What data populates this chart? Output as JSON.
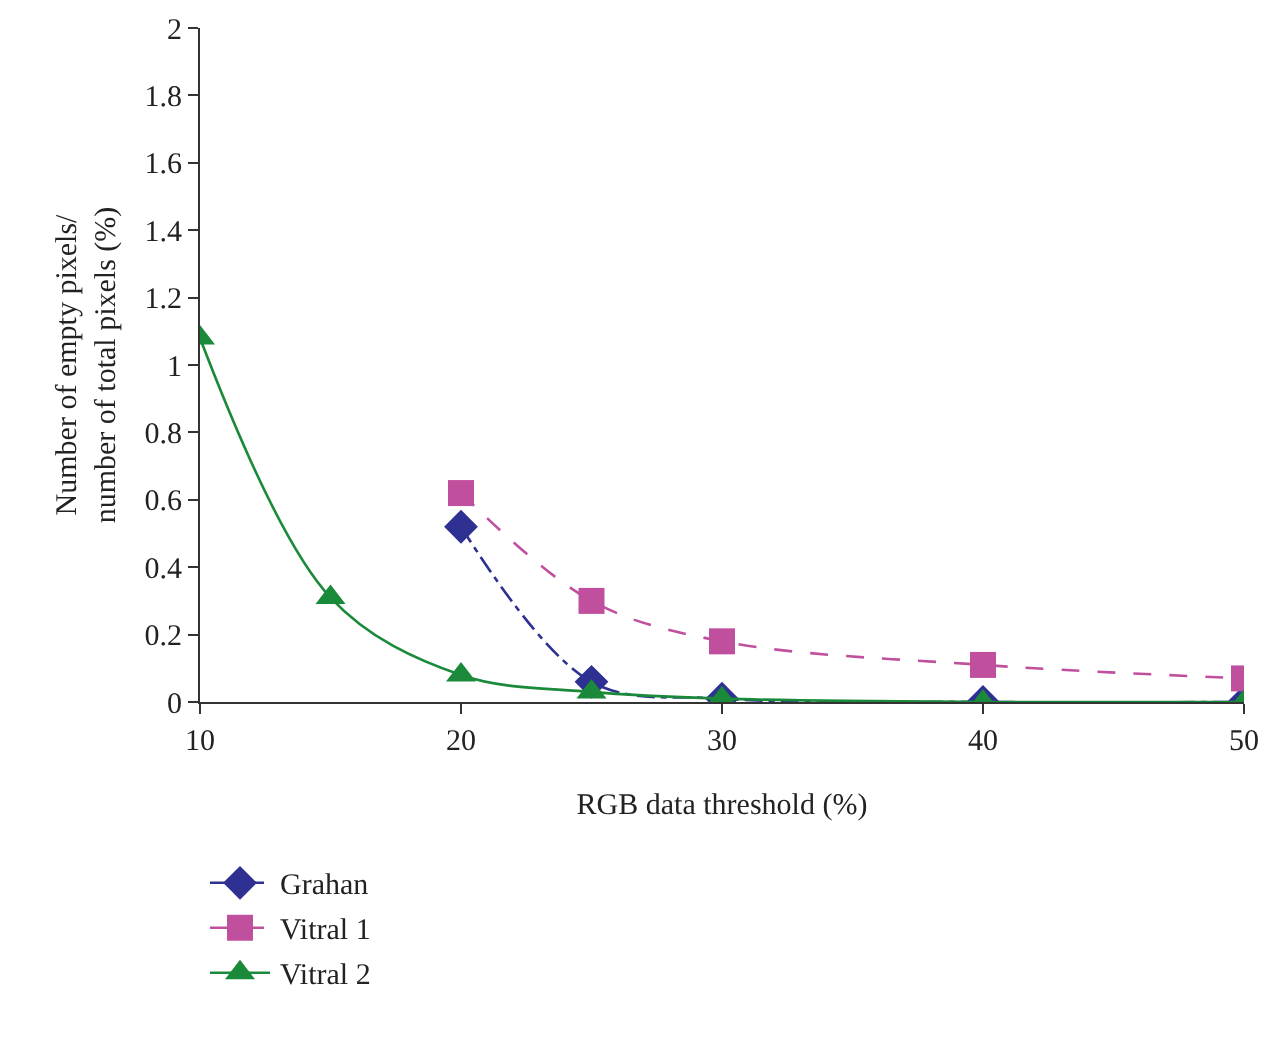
{
  "chart_data": {
    "type": "line",
    "xlabel": "RGB data threshold (%)",
    "ylabel": "Number of empty pixels/\nnumber of total pixels (%)",
    "x": [
      10,
      15,
      20,
      25,
      30,
      40,
      50
    ],
    "series": [
      {
        "name": "Grahan",
        "color": "#2e3192",
        "marker": "diamond",
        "line_style": "dashdot",
        "values": [
          null,
          null,
          0.52,
          0.06,
          0.01,
          0.0,
          0.0
        ]
      },
      {
        "name": "Vitral 1",
        "color": "#c0509e",
        "marker": "square",
        "line_style": "dashed",
        "values": [
          null,
          null,
          0.62,
          0.3,
          0.18,
          0.11,
          0.07
        ]
      },
      {
        "name": "Vitral 2",
        "color": "#1a8a3a",
        "marker": "triangle",
        "line_style": "solid",
        "values": [
          1.08,
          0.31,
          0.08,
          0.03,
          0.01,
          0.0,
          0.0
        ]
      }
    ],
    "xlim": [
      10,
      50
    ],
    "xticks": [
      10,
      20,
      30,
      40,
      50
    ],
    "ylim": [
      0,
      2
    ],
    "yticks": [
      0,
      0.2,
      0.4,
      0.6,
      0.8,
      1,
      1.2,
      1.4,
      1.6,
      1.8,
      2
    ],
    "grid": false,
    "legend": "bottom left"
  }
}
